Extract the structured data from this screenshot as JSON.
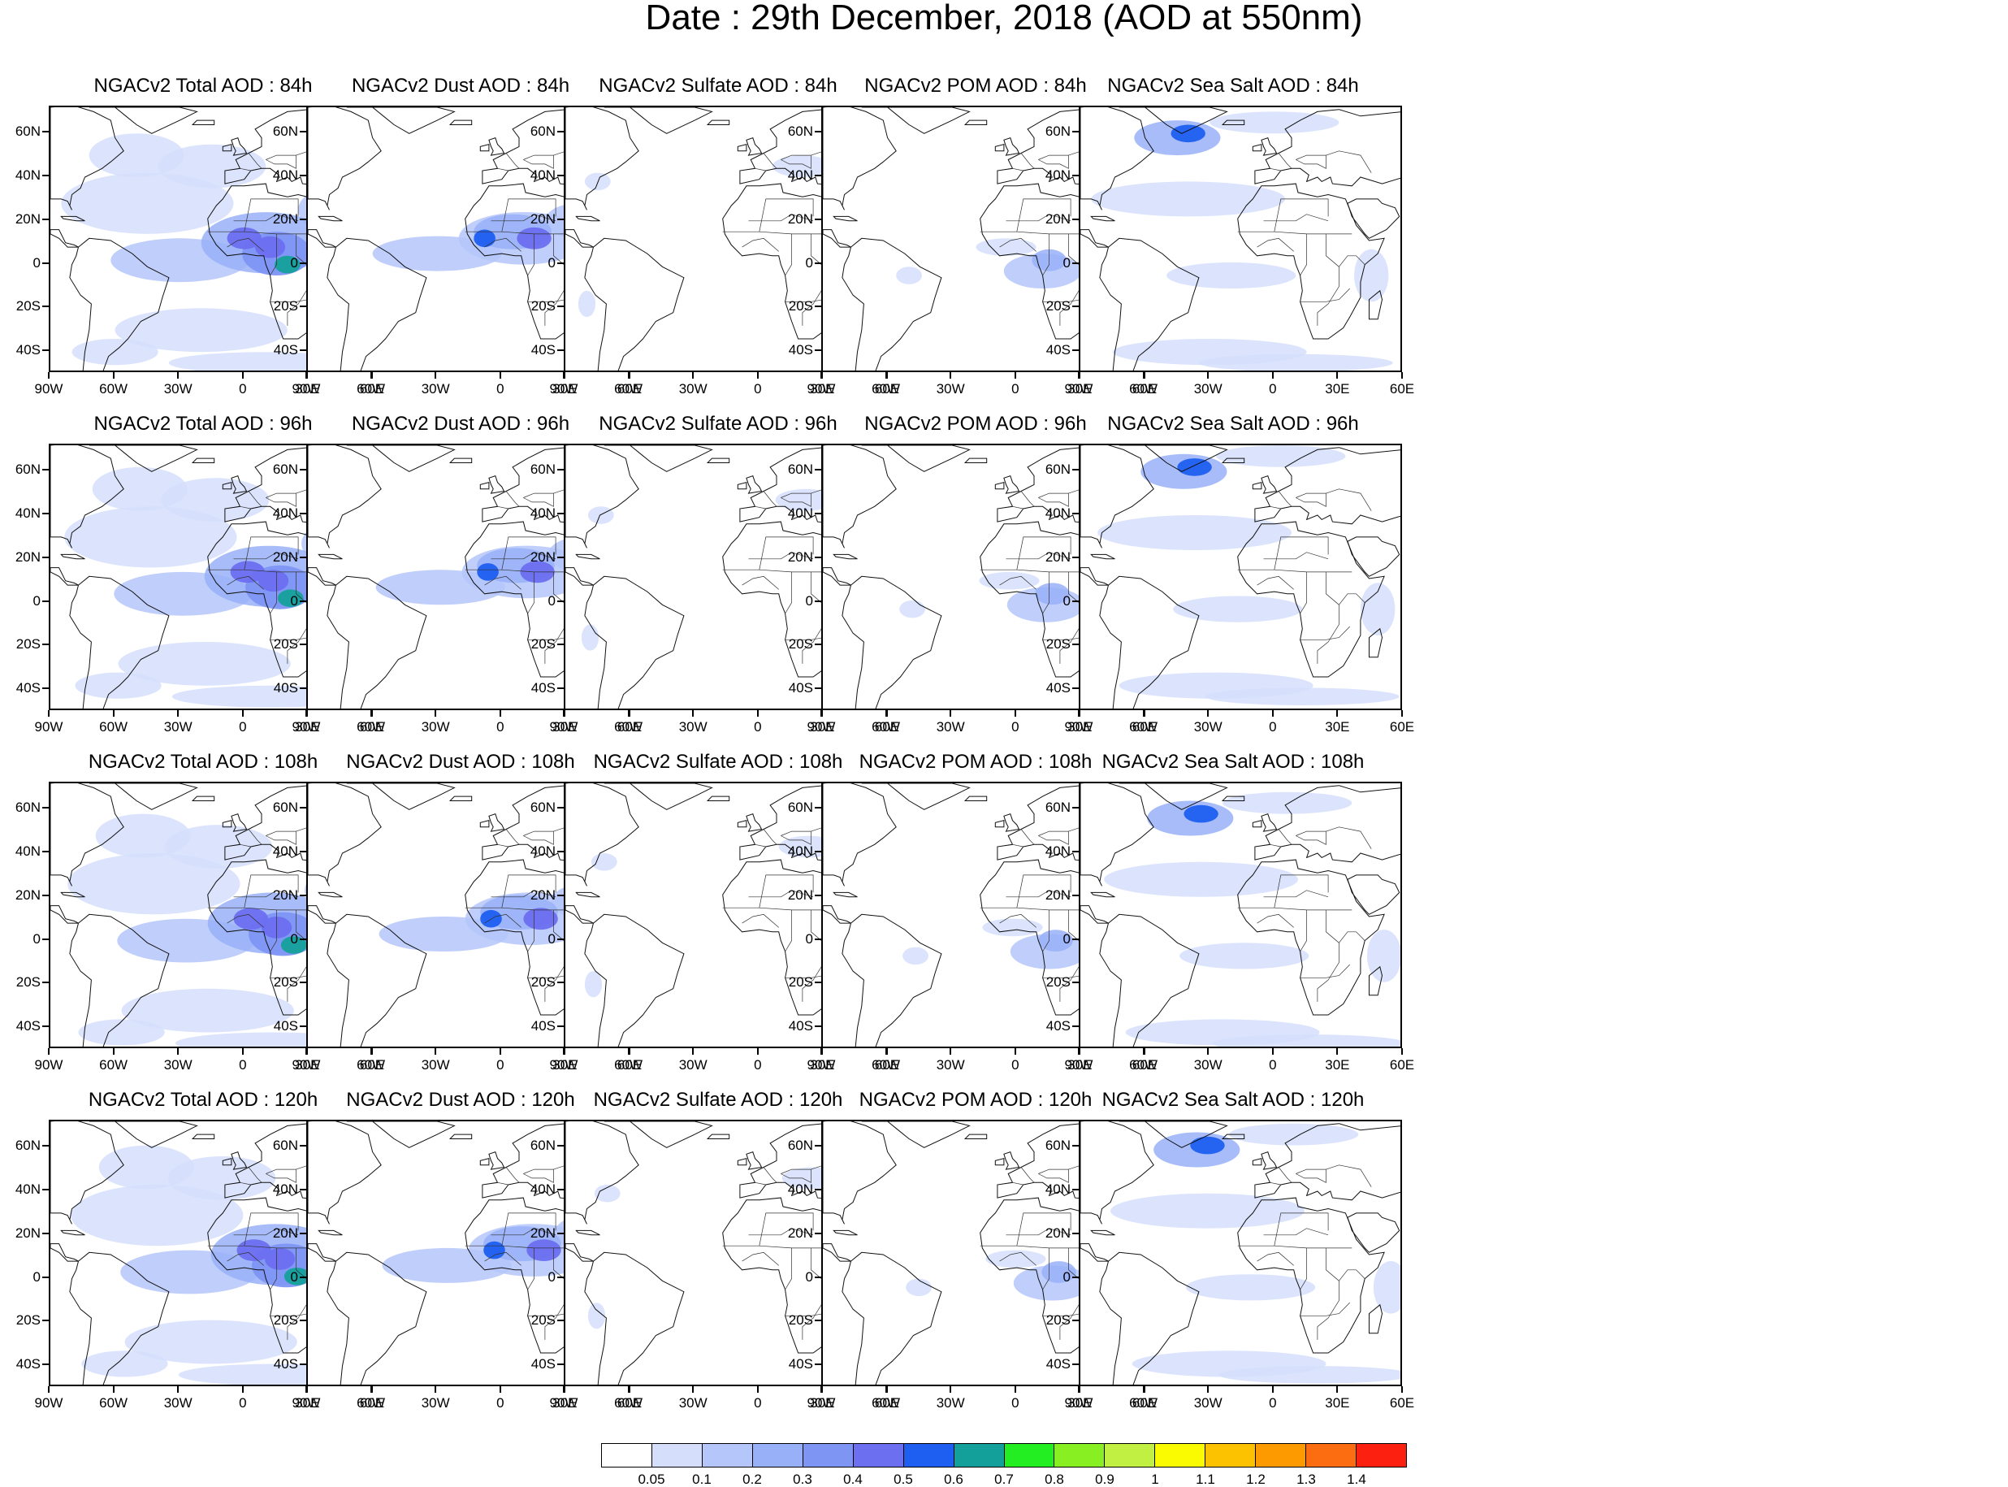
{
  "title": "Date : 29th December, 2018 (AOD at 550nm)",
  "rows": [
    "84h",
    "96h",
    "108h",
    "120h"
  ],
  "panels": [
    [
      "NGACv2 Total AOD : 84h",
      "NGACv2 Dust AOD : 84h",
      "NGACv2 Sulfate AOD : 84h",
      "NGACv2 POM AOD : 84h",
      "NGACv2 Sea Salt AOD : 84h"
    ],
    [
      "NGACv2 Total AOD : 96h",
      "NGACv2 Dust AOD : 96h",
      "NGACv2 Sulfate AOD : 96h",
      "NGACv2 POM AOD : 96h",
      "NGACv2 Sea Salt AOD : 96h"
    ],
    [
      "NGACv2 Total AOD : 108h",
      "NGACv2 Dust AOD : 108h",
      "NGACv2 Sulfate AOD : 108h",
      "NGACv2 POM AOD : 108h",
      "NGACv2 Sea Salt AOD : 108h"
    ],
    [
      "NGACv2 Total AOD : 120h",
      "NGACv2 Dust AOD : 120h",
      "NGACv2 Sulfate AOD : 120h",
      "NGACv2 POM AOD : 120h",
      "NGACv2 Sea Salt  AOD : 120h"
    ]
  ],
  "lat_labels": [
    "60N",
    "40N",
    "20N",
    "0",
    "20S",
    "40S"
  ],
  "lon_labels": [
    "90W",
    "60W",
    "30W",
    "0",
    "30E",
    "60E"
  ],
  "colorbar": {
    "labels": [
      "0.05",
      "0.1",
      "0.2",
      "0.3",
      "0.4",
      "0.5",
      "0.6",
      "0.7",
      "0.8",
      "0.9",
      "1",
      "1.1",
      "1.2",
      "1.3",
      "1.4"
    ],
    "colors": [
      "#ffffff",
      "#d5dffc",
      "#b4c6fa",
      "#98b0f8",
      "#7e95f4",
      "#6b6ff0",
      "#1e5ef0",
      "#13a09a",
      "#22ee22",
      "#88f022",
      "#c2f042",
      "#fafa00",
      "#fcc200",
      "#fc9a00",
      "#fc6c10",
      "#fc2010"
    ]
  }
}
